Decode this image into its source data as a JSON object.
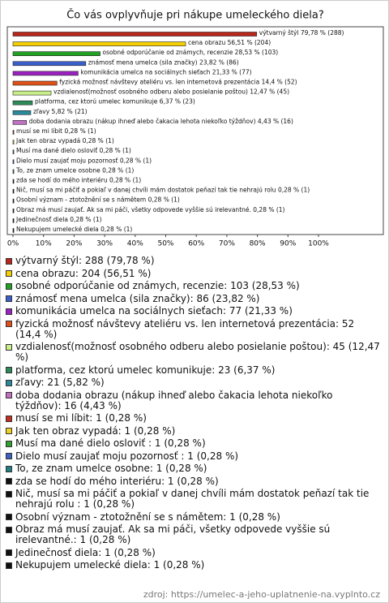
{
  "chart_data": {
    "type": "bar",
    "orientation": "horizontal",
    "title": "Čo vás ovplyvňuje pri nákupe umeleckého diela?",
    "values": [
      79.78,
      56.51,
      28.53,
      23.82,
      21.33,
      14.4,
      12.47,
      6.37,
      5.82,
      4.43,
      0.28,
      0.28,
      0.28,
      0.28,
      0.28,
      0.28,
      0.28,
      0.28,
      0.28,
      0.28,
      0.28
    ],
    "value_labels": [
      "výtvarný štýl 79,78 % (288)",
      "cena obrazu 56,51 % (204)",
      "osobné odporúčanie od známych, recenzie 28,53 % (103)",
      "známosť mena umelca (sila značky) 23,82 % (86)",
      "komunikácia umelca na sociálnych sieťach 21,33 % (77)",
      "fyzická možnosť návštevy ateliéru vs. len internetová prezentácia 14,4 % (52)",
      "vzdialenosť(možnosť osobného odberu alebo posielanie poštou) 12,47 % (45)",
      "platforma, cez ktorú umelec komunikuje 6,37 % (23)",
      "zľavy 5,82 % (21)",
      "doba dodania obrazu (nákup ihneď alebo čakacia lehota niekoľko týždňov) 4,43 % (16)",
      "musí se mi líbit 0,28 % (1)",
      "Jak ten obraz vypadá 0,28 % (1)",
      "Musí ma dané dielo osloviť  0,28 % (1)",
      "Dielo musí zaujať moju pozornosť  0,28 % (1)",
      "To, ze znam umelce osobne 0,28 % (1)",
      "zda se hodí do mého interiéru 0,28 % (1)",
      "Nič, musí sa mi páčiť a pokiaľ v danej chvíli mám dostatok peňazí tak tie nehrajú rolu  0,28 % (1)",
      "Osobní význam - ztotožnění se s námětem 0,28 % (1)",
      "Obraz má musí zaujať. Ak sa mi páči, všetky odpovede vyššie sú irelevantné. 0,28 % (1)",
      "Jedinečnosť diela 0,28 % (1)",
      "Nekupujem umelecké diela 0,28 % (1)"
    ],
    "legend_labels": [
      "výtvarný štýl: 288 (79,78 %)",
      "cena obrazu: 204 (56,51 %)",
      "osobné odporúčanie od známych, recenzie: 103 (28,53 %)",
      "známosť mena umelca (sila značky): 86 (23,82 %)",
      "komunikácia umelca na sociálnych sieťach: 77 (21,33 %)",
      "fyzická možnosť návštevy ateliéru vs. len internetová prezentácia: 52 (14,4 %)",
      "vzdialenosť(možnosť osobného odberu alebo posielanie poštou): 45 (12,47 %)",
      "platforma, cez ktorú umelec komunikuje: 23 (6,37 %)",
      "zľavy: 21 (5,82 %)",
      "doba dodania obrazu (nákup ihneď alebo čakacia lehota niekoľko týždňov): 16 (4,43 %)",
      "musí se mi líbit: 1 (0,28 %)",
      "Jak ten obraz vypadá: 1 (0,28 %)",
      "Musí ma dané dielo osloviť : 1 (0,28 %)",
      "Dielo musí zaujať moju pozornosť : 1 (0,28 %)",
      "To, ze znam umelce osobne: 1 (0,28 %)",
      "zda se hodí do mého interiéru: 1 (0,28 %)",
      "Nič, musí sa mi páčiť a pokiaľ v danej chvíli mám dostatok peňazí tak tie nehrajú rolu : 1 (0,28 %)",
      "Osobní význam - ztotožnění se s námětem: 1 (0,28 %)",
      "Obraz má musí zaujať. Ak sa mi páči, všetky odpovede vyššie sú irelevantné.: 1 (0,28 %)",
      "Jedinečnosť diela: 1 (0,28 %)",
      "Nekupujem umelecké diela: 1 (0,28 %)"
    ],
    "colors": [
      "#b8261c",
      "#f4d000",
      "#22a022",
      "#3a5fcd",
      "#9a22c0",
      "#e0501a",
      "#c8ef88",
      "#2e8b57",
      "#2a8a9c",
      "#c070c0",
      "#c03020",
      "#f0d020",
      "#30a030",
      "#4060c0",
      "#208080",
      "#111111",
      "#111111",
      "#111111",
      "#111111",
      "#111111",
      "#111111"
    ],
    "xlim": [
      0,
      100
    ],
    "xticks": [
      {
        "value": 0,
        "label": "0%"
      },
      {
        "value": 10,
        "label": "10%"
      },
      {
        "value": 20,
        "label": "20%"
      },
      {
        "value": 30,
        "label": "30%"
      },
      {
        "value": 40,
        "label": "40%"
      },
      {
        "value": 50,
        "label": "50%"
      },
      {
        "value": 60,
        "label": "60%"
      },
      {
        "value": 70,
        "label": "70%"
      },
      {
        "value": 80,
        "label": "80%"
      },
      {
        "value": 90,
        "label": "90%"
      },
      {
        "value": 100,
        "label": "100%"
      }
    ],
    "source": "zdroj: https://umelec-a-jeho-uplatnenie-na.vyplnto.cz"
  }
}
